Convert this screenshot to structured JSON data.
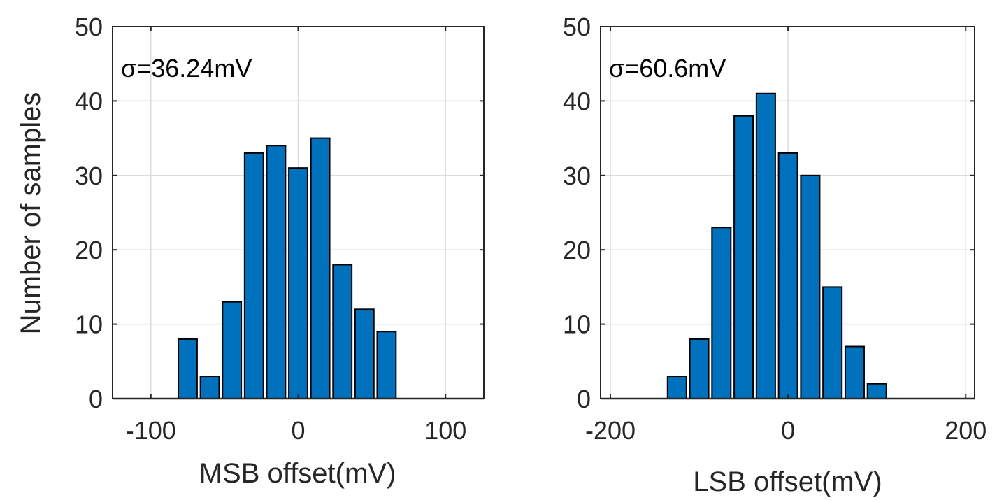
{
  "figure": {
    "shared_ylabel": "Number of samples",
    "colors": {
      "bar_fill": "#0072BD",
      "bar_edge": "#000000",
      "grid": "#DCDCDC",
      "axis": "#262626",
      "background": "#FFFFFF"
    }
  },
  "chart_data": [
    {
      "type": "bar",
      "title": "",
      "annotation": "σ=36.24mV",
      "xlabel": "MSB offset(mV)",
      "ylabel": "Number of samples",
      "xlim": [
        -126,
        126
      ],
      "ylim": [
        0,
        50
      ],
      "xticks": [
        -100,
        0,
        100
      ],
      "xtick_labels": [
        "-100",
        "0",
        "100"
      ],
      "yticks": [
        0,
        10,
        20,
        30,
        40,
        50
      ],
      "ytick_labels": [
        "0",
        "10",
        "20",
        "30",
        "40",
        "50"
      ],
      "grid": true,
      "bin_width": 15,
      "x": [
        -75,
        -60,
        -45,
        -30,
        -15,
        0,
        15,
        30,
        45,
        60
      ],
      "values": [
        8,
        3,
        13,
        33,
        34,
        31,
        35,
        18,
        12,
        9
      ]
    },
    {
      "type": "bar",
      "title": "",
      "annotation": "σ=60.6mV",
      "xlabel": "LSB offset(mV)",
      "ylabel": "",
      "xlim": [
        -211,
        210
      ],
      "ylim": [
        0,
        50
      ],
      "xticks": [
        -200,
        0,
        200
      ],
      "xtick_labels": [
        "-200",
        "0",
        "200"
      ],
      "yticks": [
        0,
        10,
        20,
        30,
        40,
        50
      ],
      "ytick_labels": [
        "0",
        "10",
        "20",
        "30",
        "40",
        "50"
      ],
      "grid": true,
      "bin_width": 25,
      "x": [
        -125,
        -100,
        -75,
        -50,
        -25,
        0,
        25,
        50,
        75,
        100
      ],
      "values": [
        3,
        8,
        23,
        38,
        41,
        33,
        30,
        15,
        7,
        2
      ]
    }
  ]
}
